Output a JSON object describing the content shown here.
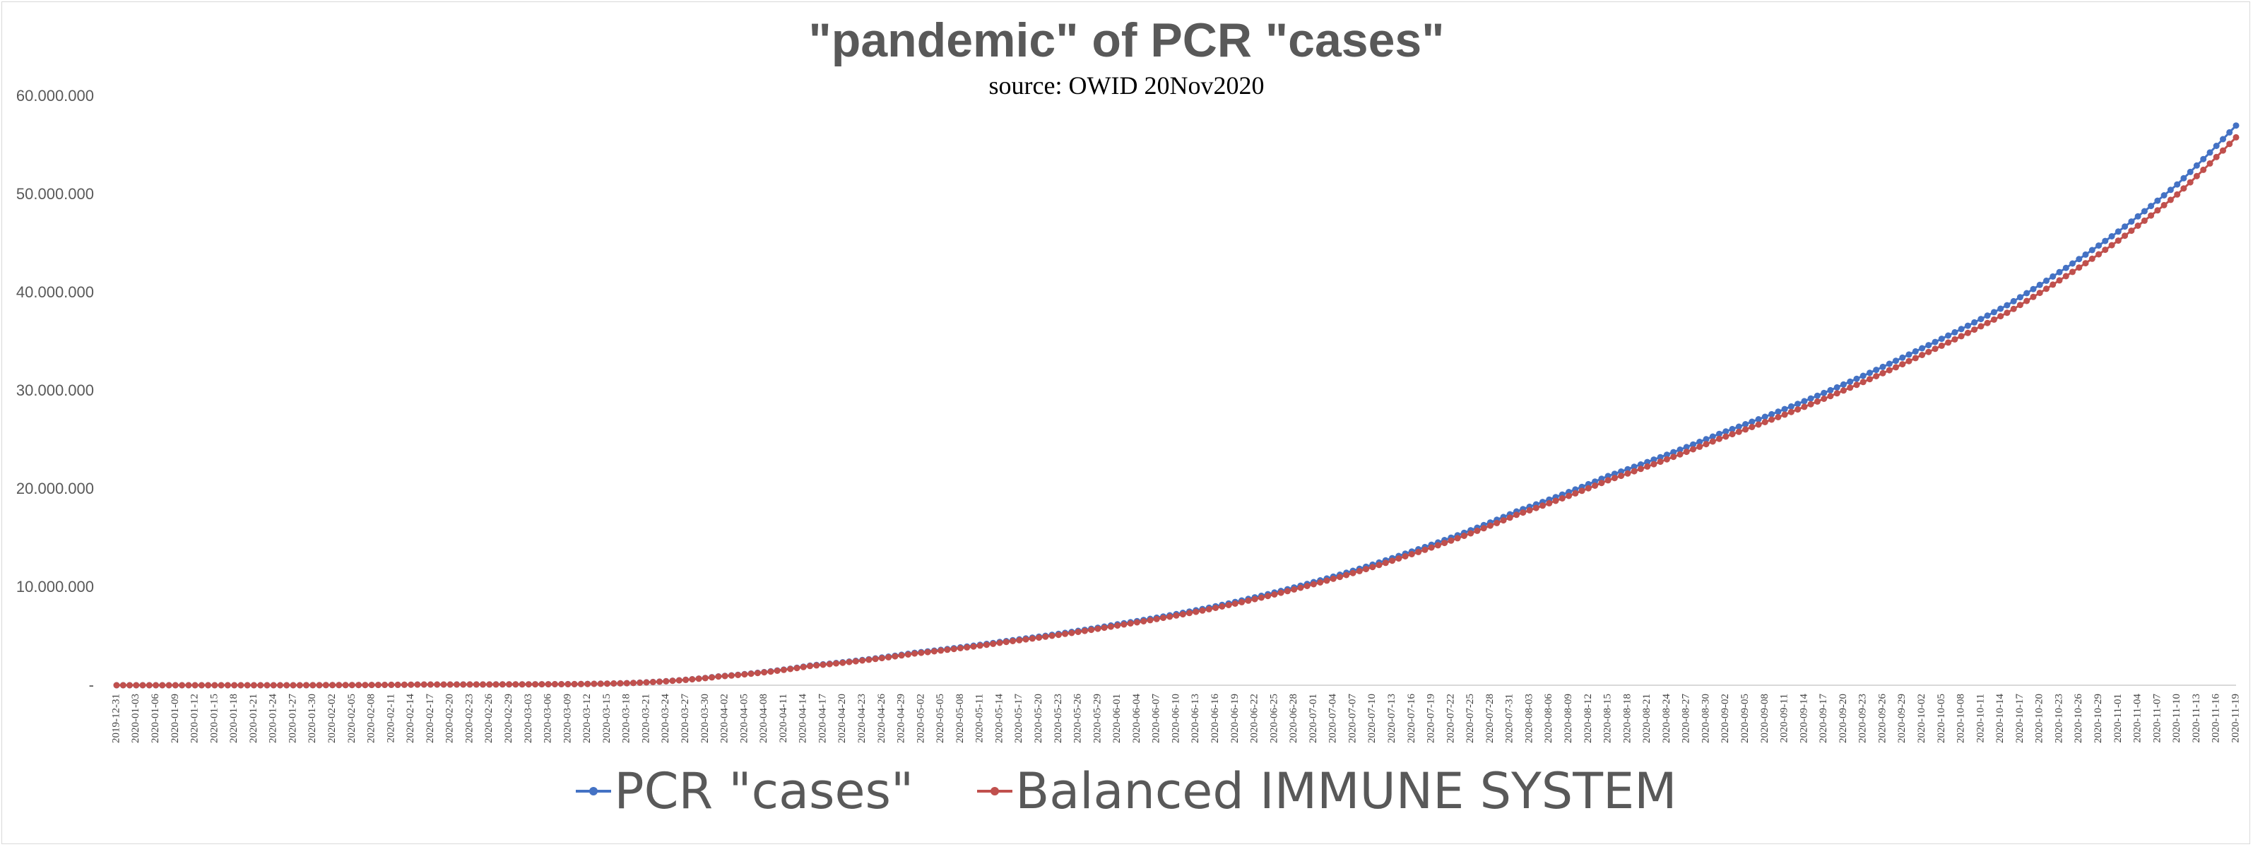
{
  "chart_data": {
    "type": "line",
    "title": "\"pandemic\" of PCR \"cases\"",
    "subtitle": "source: OWID 20Nov2020",
    "xlabel": "",
    "ylabel": "",
    "ylim": [
      0,
      60000000
    ],
    "y_ticks": [
      0,
      10000000,
      20000000,
      30000000,
      40000000,
      50000000,
      60000000
    ],
    "y_tick_labels": [
      "-",
      "10.000.000",
      "20.000.000",
      "30.000.000",
      "40.000.000",
      "50.000.000",
      "60.000.000"
    ],
    "grid": false,
    "legend_position": "bottom",
    "x_start": "2019-12-31",
    "x_end": "2020-11-19",
    "x_tick_step_days": 3,
    "marker": "circle",
    "series": [
      {
        "name": "PCR \"cases\"",
        "color": "#4472C4",
        "points": [
          [
            "2019-12-31",
            27
          ],
          [
            "2020-01-15",
            44
          ],
          [
            "2020-01-31",
            9800
          ],
          [
            "2020-02-15",
            69000
          ],
          [
            "2020-02-29",
            86000
          ],
          [
            "2020-03-10",
            117000
          ],
          [
            "2020-03-18",
            210000
          ],
          [
            "2020-03-25",
            460000
          ],
          [
            "2020-04-01",
            900000
          ],
          [
            "2020-04-15",
            2000000
          ],
          [
            "2020-05-01",
            3300000
          ],
          [
            "2020-05-15",
            4500000
          ],
          [
            "2020-06-01",
            6200000
          ],
          [
            "2020-06-15",
            7900000
          ],
          [
            "2020-07-01",
            10500000
          ],
          [
            "2020-07-15",
            13400000
          ],
          [
            "2020-08-01",
            17700000
          ],
          [
            "2020-08-15",
            21300000
          ],
          [
            "2020-09-01",
            25600000
          ],
          [
            "2020-09-15",
            29200000
          ],
          [
            "2020-10-01",
            34000000
          ],
          [
            "2020-10-15",
            38700000
          ],
          [
            "2020-11-01",
            46200000
          ],
          [
            "2020-11-10",
            51000000
          ],
          [
            "2020-11-19",
            57000000
          ]
        ]
      },
      {
        "name": "Balanced IMMUNE SYSTEM",
        "color": "#C0504D",
        "points": [
          [
            "2019-12-31",
            27
          ],
          [
            "2020-01-15",
            44
          ],
          [
            "2020-01-31",
            9600
          ],
          [
            "2020-02-15",
            67600
          ],
          [
            "2020-02-29",
            84300
          ],
          [
            "2020-03-10",
            114700
          ],
          [
            "2020-03-18",
            205800
          ],
          [
            "2020-03-25",
            450800
          ],
          [
            "2020-04-01",
            882000
          ],
          [
            "2020-04-15",
            1960000
          ],
          [
            "2020-05-01",
            3230000
          ],
          [
            "2020-05-15",
            4410000
          ],
          [
            "2020-06-01",
            6080000
          ],
          [
            "2020-06-15",
            7740000
          ],
          [
            "2020-07-01",
            10290000
          ],
          [
            "2020-07-15",
            13130000
          ],
          [
            "2020-08-01",
            17350000
          ],
          [
            "2020-08-15",
            20870000
          ],
          [
            "2020-09-01",
            25090000
          ],
          [
            "2020-09-15",
            28620000
          ],
          [
            "2020-10-01",
            33320000
          ],
          [
            "2020-10-15",
            37930000
          ],
          [
            "2020-11-01",
            45280000
          ],
          [
            "2020-11-10",
            49980000
          ],
          [
            "2020-11-19",
            55800000
          ]
        ]
      }
    ]
  }
}
